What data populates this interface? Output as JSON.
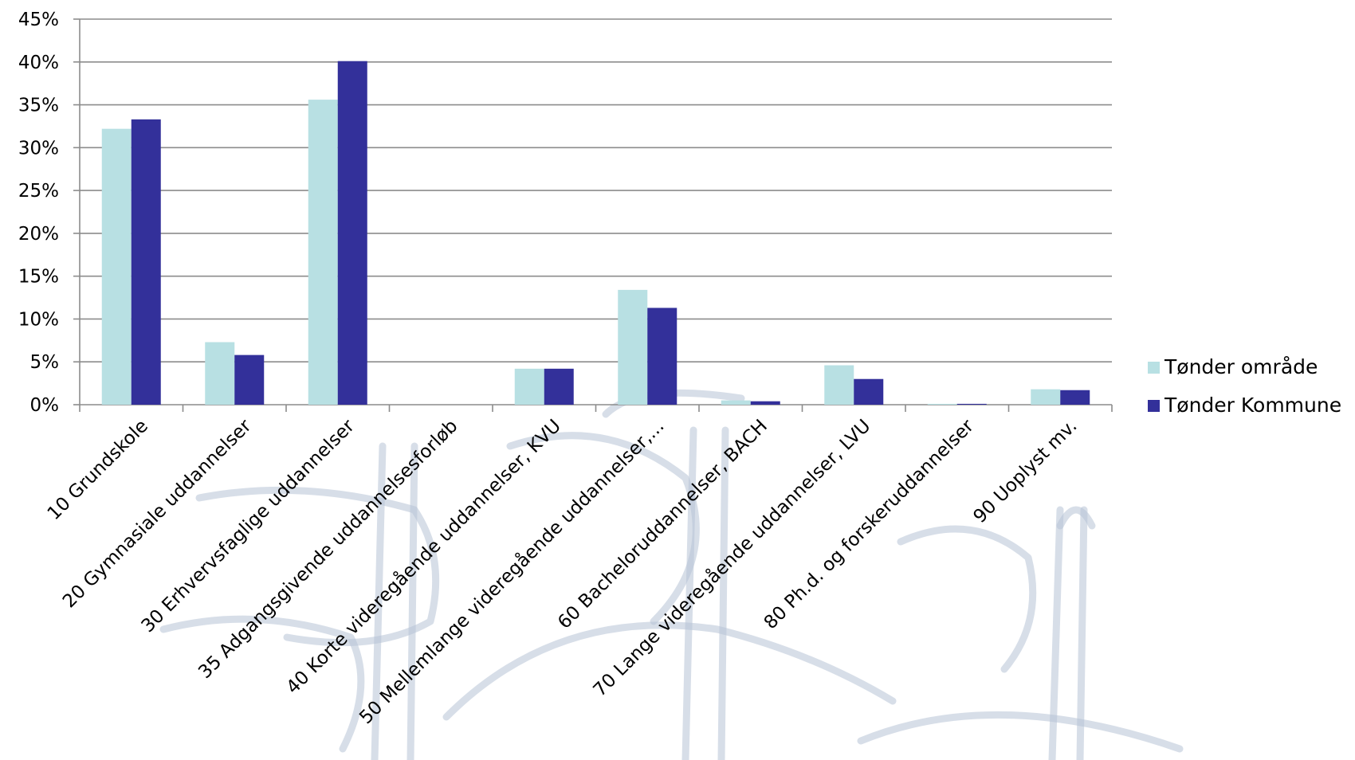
{
  "chart_data": {
    "type": "bar",
    "title": "",
    "xlabel": "",
    "ylabel": "",
    "ylim": [
      0,
      45
    ],
    "yticks": [
      0,
      5,
      10,
      15,
      20,
      25,
      30,
      35,
      40,
      45
    ],
    "ytick_labels": [
      "0%",
      "5%",
      "10%",
      "15%",
      "20%",
      "25%",
      "30%",
      "35%",
      "40%",
      "45%"
    ],
    "grid": true,
    "legend_position": "right",
    "categories": [
      "10 Grundskole",
      "20 Gymnasiale uddannelser",
      "30 Erhvervsfaglige uddannelser",
      "35 Adgangsgivende uddannelsesforløb",
      "40 Korte videregående uddannelser, KVU",
      "50 Mellemlange videregående uddannelser,...",
      "60 Bacheloruddannelser, BACH",
      "70 Lange videregående uddannelser, LVU",
      "80 Ph.d. og forskeruddannelser",
      "90 Uoplyst mv."
    ],
    "series": [
      {
        "name": "Tønder område",
        "color": "#b8e0e3",
        "values": [
          32.2,
          7.3,
          35.6,
          0,
          4.2,
          13.4,
          0.5,
          4.6,
          0.1,
          1.8
        ]
      },
      {
        "name": "Tønder Kommune",
        "color": "#33309a",
        "values": [
          33.3,
          5.8,
          40.1,
          0,
          4.2,
          11.3,
          0.4,
          3.0,
          0.1,
          1.7
        ]
      }
    ]
  }
}
